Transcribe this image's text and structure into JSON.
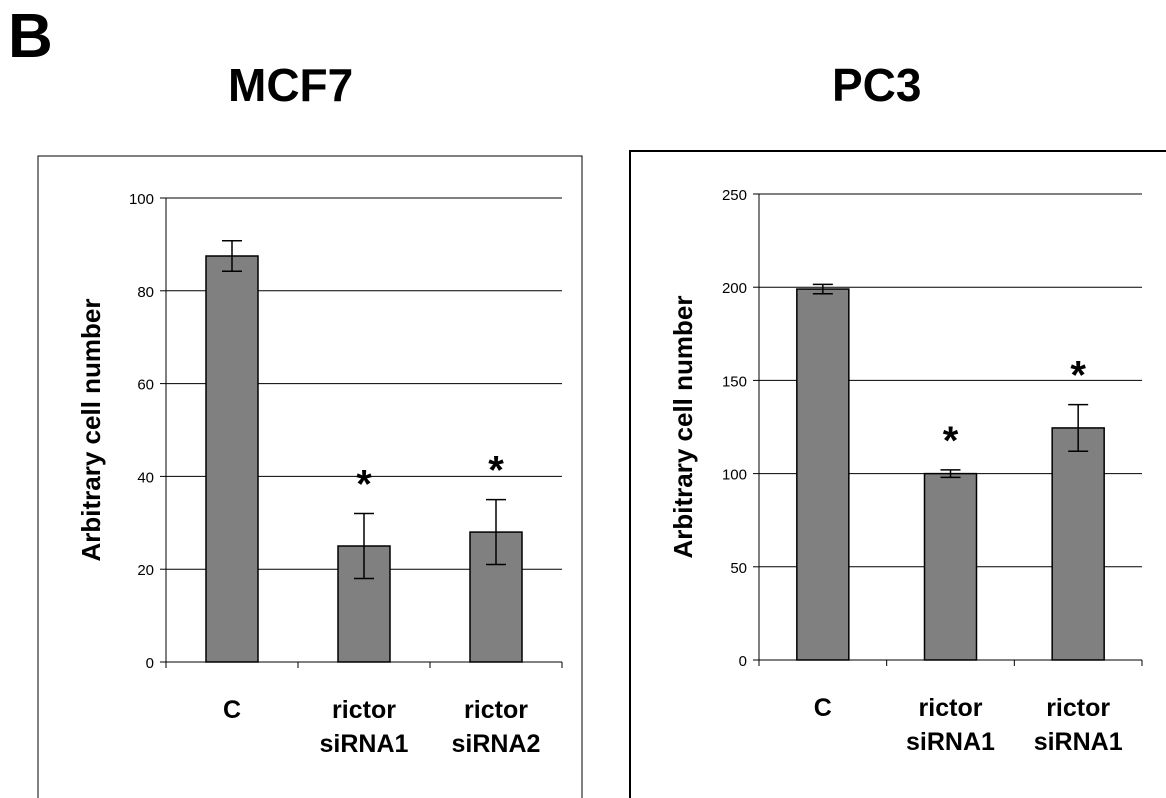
{
  "panel_label": "B",
  "chart_data": [
    {
      "type": "bar",
      "title": "MCF7",
      "xlabel": "",
      "ylabel": "Arbitrary cell number",
      "categories": [
        "C",
        "rictor\nsiRNA1",
        "rictor\nsiRNA2"
      ],
      "values": [
        87.5,
        25,
        28
      ],
      "error": [
        3.3,
        7,
        7
      ],
      "significance": [
        "",
        "*",
        "*"
      ],
      "ylim": [
        0,
        100
      ],
      "yticks": [
        0,
        20,
        40,
        60,
        80,
        100
      ],
      "grid": true,
      "legend": "none",
      "bar_color": "#808080"
    },
    {
      "type": "bar",
      "title": "PC3",
      "xlabel": "",
      "ylabel": "Arbitrary cell number",
      "categories": [
        "C",
        "rictor\nsiRNA1",
        "rictor\nsiRNA1"
      ],
      "values": [
        199,
        100,
        124.5
      ],
      "error": [
        2.5,
        2,
        12.5
      ],
      "significance": [
        "",
        "*",
        "*"
      ],
      "ylim": [
        0,
        250
      ],
      "yticks": [
        0,
        50,
        100,
        150,
        200,
        250
      ],
      "grid": true,
      "legend": "none",
      "bar_color": "#808080"
    }
  ]
}
